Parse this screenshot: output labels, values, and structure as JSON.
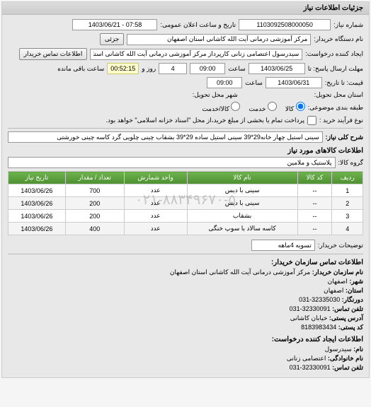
{
  "panel": {
    "title": "جزئیات اطلاعات نیاز"
  },
  "fields": {
    "request_number_label": "شماره نیاز:",
    "request_number": "1103092508000050",
    "announce_date_label": "تاریخ و ساعت اعلان عمومی:",
    "announce_date": "1403/06/21 - 07:58",
    "requester_org_label": "نام دستگاه خریدار:",
    "requester_org": "مرکز آموزشی درمانی آیت الله کاشانی استان اصفهان",
    "details_btn": "جزئی",
    "creator_label": "ایجاد کننده درخواست:",
    "creator": "سیدرسول اعتصامی زنانی کارپرداز مرکز آموزشی درمانی آیت الله کاشانی استا",
    "contact_btn": "اطلاعات تماس خریدار",
    "response_deadline_label": "مهلت ارسال پاسخ: تا",
    "response_date": "1403/06/25",
    "time_label": "ساعت",
    "response_time": "09:00",
    "days_label": "روز و",
    "remaining_days": "4",
    "remaining_time": "00:52:15",
    "remaining_label": "ساعت باقی مانده",
    "price_label": "قیمت: تا تاریخ:",
    "price_date": "1403/06/31",
    "price_time": "09:00",
    "delivery_place_label": "استان محل تحویل:",
    "delivery_city_label": "شهر محل تحویل:",
    "packaging_label": "طبقه بندی موضوعی:",
    "radio_goods": "کالا",
    "radio_service": "خدمت",
    "radio_both": "کالا/خدمت",
    "purchase_type_label": "نوع فرآیند خرید :",
    "purchase_type_text": "پرداخت تمام یا بخشی از مبلغ خرید،از محل \"اسناد خزانه اسلامی\" خواهد بود.",
    "general_desc_label": "شرح کلی نیاز:",
    "general_desc": "سینی استیل چهار خانه29*39 سینی استیل ساده 29*39 بشقاب چینی چلویی گرد کاسه چینی خورشتی",
    "goods_info_title": "اطلاعات کالاهای مورد نیاز",
    "group_label": "گروه کالا:",
    "group_value": "پلاستیک و ملامین",
    "buyer_notes_label": "توضیحات خریدار:",
    "buyer_notes_value": "تسویه 4ماهه",
    "watermark": "۰۲۱-۸۸۳۴۹۶۷۰-۵"
  },
  "table": {
    "headers": [
      "ردیف",
      "کد کالا",
      "نام کالا",
      "واحد شمارش",
      "تعداد / مقدار",
      "تاریخ نیاز"
    ],
    "rows": [
      [
        "1",
        "--",
        "سینی با دیس",
        "عدد",
        "700",
        "1403/06/26"
      ],
      [
        "2",
        "--",
        "سینی با دیس",
        "عدد",
        "200",
        "1403/06/26"
      ],
      [
        "3",
        "--",
        "بشقاب",
        "عدد",
        "200",
        "1403/06/26"
      ],
      [
        "4",
        "--",
        "کاسه سالاد با سوپ خنگی",
        "عدد",
        "400",
        "1403/06/26"
      ]
    ]
  },
  "contact": {
    "org_title": "اطلاعات تماس سازمان خریدار:",
    "org_name_label": "نام سازمان خریدار:",
    "org_name": "مرکز آموزشی درمانی آیت الله کاشانی استان اصفهان",
    "city_label": "شهر:",
    "city": "اصفهان",
    "province_label": "استان:",
    "province": "اصفهان",
    "fax_label": "دورنگار:",
    "fax": "32335030-031",
    "phone_label": "تلفن تماس:",
    "phone": "32330091-031",
    "address_label": "آدرس پستی:",
    "address": "خیابان کاشانی",
    "postal_label": "کد پستی:",
    "postal": "8183983434",
    "creator_title": "اطلاعات ایجاد کننده درخواست:",
    "name_label": "نام:",
    "name": "سیدرسول",
    "lastname_label": "نام خانوادگی:",
    "lastname": "اعتصامی زنانی",
    "creator_phone_label": "تلفن تماس:",
    "creator_phone": "32330091-031"
  },
  "colors": {
    "header_bg_start": "#6db34f",
    "header_bg_end": "#4e9030",
    "panel_bg": "#e8e8e8",
    "yellow_bg": "#ffffcc"
  }
}
